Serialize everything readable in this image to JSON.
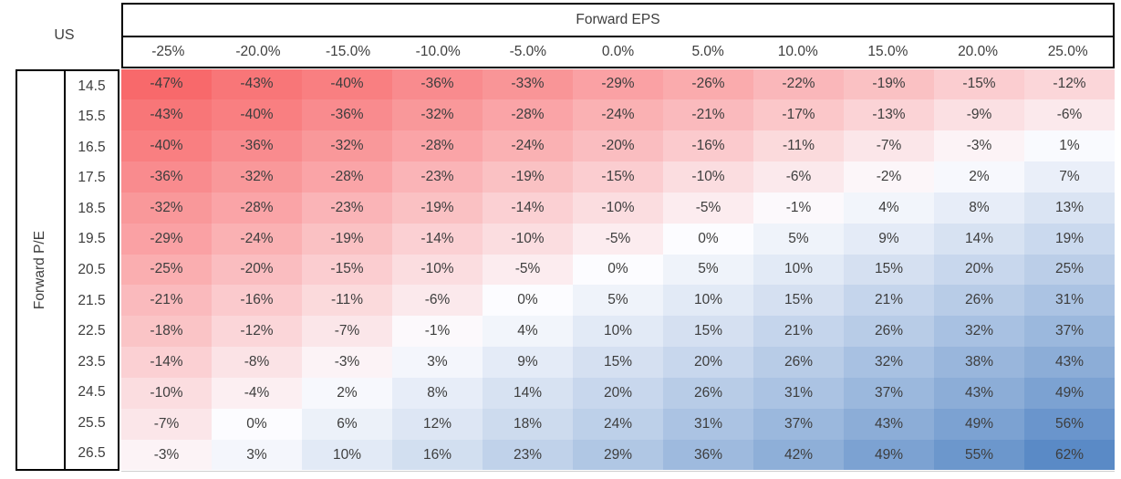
{
  "table": {
    "corner_label": "US",
    "column_group_label": "Forward EPS",
    "row_group_label": "Forward P/E"
  },
  "chart_data": {
    "type": "heatmap",
    "x_label": "Forward EPS",
    "y_label": "Forward P/E",
    "x_categories": [
      "-25%",
      "-20.0%",
      "-15.0%",
      "-10.0%",
      "-5.0%",
      "0.0%",
      "5.0%",
      "10.0%",
      "15.0%",
      "20.0%",
      "25.0%"
    ],
    "y_categories": [
      "14.5",
      "15.5",
      "16.5",
      "17.5",
      "18.5",
      "19.5",
      "20.5",
      "21.5",
      "22.5",
      "23.5",
      "24.5",
      "25.5",
      "26.5"
    ],
    "values": [
      [
        -47,
        -43,
        -40,
        -36,
        -33,
        -29,
        -26,
        -22,
        -19,
        -15,
        -12
      ],
      [
        -43,
        -40,
        -36,
        -32,
        -28,
        -24,
        -21,
        -17,
        -13,
        -9,
        -6
      ],
      [
        -40,
        -36,
        -32,
        -28,
        -24,
        -20,
        -16,
        -11,
        -7,
        -3,
        1
      ],
      [
        -36,
        -32,
        -28,
        -23,
        -19,
        -15,
        -10,
        -6,
        -2,
        2,
        7
      ],
      [
        -32,
        -28,
        -23,
        -19,
        -14,
        -10,
        -5,
        -1,
        4,
        8,
        13
      ],
      [
        -29,
        -24,
        -19,
        -14,
        -10,
        -5,
        0,
        5,
        9,
        14,
        19
      ],
      [
        -25,
        -20,
        -15,
        -10,
        -5,
        0,
        5,
        10,
        15,
        20,
        25
      ],
      [
        -21,
        -16,
        -11,
        -6,
        0,
        5,
        10,
        15,
        21,
        26,
        31
      ],
      [
        -18,
        -12,
        -7,
        -1,
        4,
        10,
        15,
        21,
        26,
        32,
        37
      ],
      [
        -14,
        -8,
        -3,
        3,
        9,
        15,
        20,
        26,
        32,
        38,
        43
      ],
      [
        -10,
        -4,
        2,
        8,
        14,
        20,
        26,
        31,
        37,
        43,
        49
      ],
      [
        -7,
        0,
        6,
        12,
        18,
        24,
        31,
        37,
        43,
        49,
        56
      ],
      [
        -3,
        3,
        10,
        16,
        23,
        29,
        36,
        42,
        49,
        55,
        62
      ]
    ],
    "value_format": "percent-integer",
    "layout": {
      "grid": false,
      "cell_text_color": "#3d3d3d"
    },
    "color_scale": {
      "min_color": "#F8696B",
      "mid_color": "#FCFCFF",
      "max_color": "#5A8AC6",
      "mid_value": 0
    }
  }
}
